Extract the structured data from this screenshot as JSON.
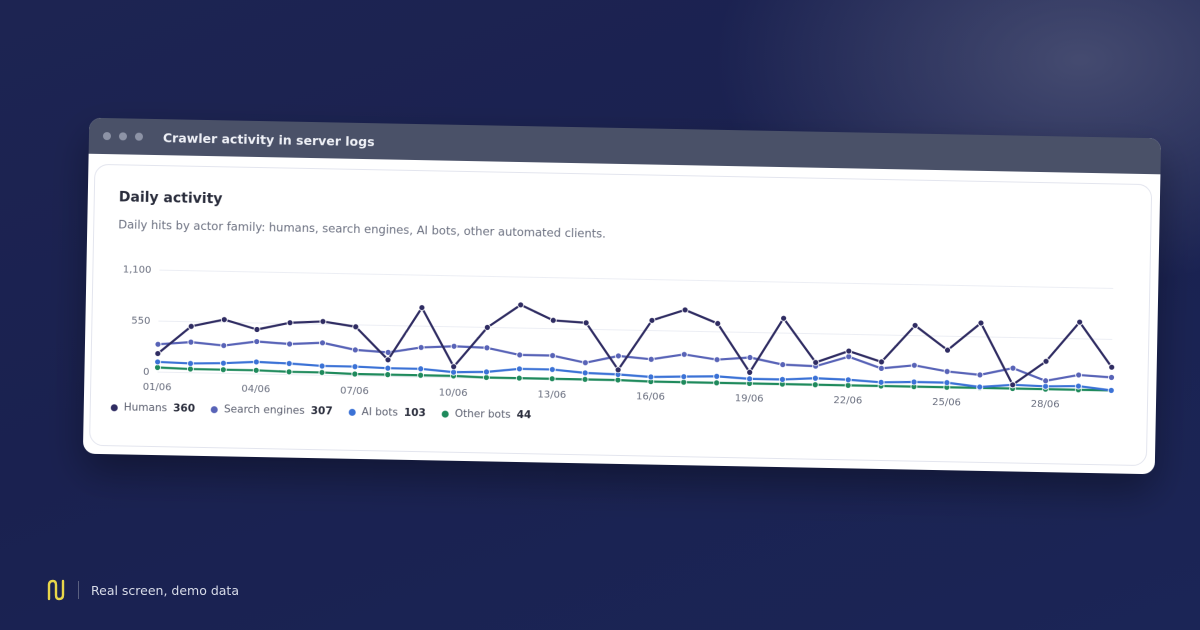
{
  "window": {
    "title": "Crawler activity in server logs"
  },
  "card": {
    "title": "Daily activity",
    "subtitle": "Daily hits by actor family: humans, search engines, AI bots, other automated clients."
  },
  "legend": [
    {
      "name": "Humans",
      "value": "360",
      "color": "#2f2c62"
    },
    {
      "name": "Search engines",
      "value": "307",
      "color": "#5863b7"
    },
    {
      "name": "AI bots",
      "value": "103",
      "color": "#3b72d6"
    },
    {
      "name": "Other bots",
      "value": "44",
      "color": "#1f8a5c"
    }
  ],
  "footer": {
    "text": "Real screen, demo data",
    "logo_icon": "brand-logo-icon"
  },
  "chart_data": {
    "type": "line",
    "title": "Daily activity",
    "ylim": [
      0,
      1100
    ],
    "yticks": [
      "0",
      "550",
      "1,100"
    ],
    "x": [
      "01/06",
      "02/06",
      "03/06",
      "04/06",
      "05/06",
      "06/06",
      "07/06",
      "08/06",
      "09/06",
      "10/06",
      "11/06",
      "12/06",
      "13/06",
      "14/06",
      "15/06",
      "16/06",
      "17/06",
      "18/06",
      "19/06",
      "20/06",
      "21/06",
      "22/06",
      "23/06",
      "24/06",
      "25/06",
      "26/06",
      "27/06",
      "28/06",
      "29/06",
      "30/06"
    ],
    "xticks": [
      "01/06",
      "04/06",
      "07/06",
      "10/06",
      "13/06",
      "16/06",
      "19/06",
      "22/06",
      "25/06",
      "28/06"
    ],
    "grid": true,
    "legend_position": "bottom-left",
    "series": [
      {
        "name": "Humans",
        "color": "#2f2c62",
        "values": [
          200,
          500,
          580,
          480,
          560,
          580,
          530,
          180,
          750,
          120,
          550,
          800,
          640,
          620,
          120,
          660,
          780,
          640,
          120,
          710,
          240,
          370,
          260,
          660,
          400,
          700,
          40,
          300,
          730,
          250
        ]
      },
      {
        "name": "Search engines",
        "color": "#5863b7",
        "values": [
          300,
          330,
          300,
          350,
          330,
          350,
          280,
          260,
          320,
          340,
          330,
          260,
          260,
          190,
          270,
          240,
          300,
          250,
          280,
          210,
          200,
          310,
          190,
          230,
          170,
          140,
          220,
          90,
          160,
          140
        ]
      },
      {
        "name": "AI bots",
        "color": "#3b72d6",
        "values": [
          110,
          100,
          110,
          130,
          120,
          100,
          100,
          90,
          90,
          60,
          70,
          110,
          110,
          80,
          70,
          50,
          60,
          70,
          50,
          50,
          70,
          60,
          40,
          50,
          50,
          10,
          40,
          30,
          40,
          0
        ]
      },
      {
        "name": "Other bots",
        "color": "#1f8a5c",
        "values": [
          50,
          40,
          40,
          40,
          30,
          30,
          20,
          20,
          20,
          20,
          10,
          10,
          10,
          10,
          10,
          0,
          0,
          0,
          0,
          0,
          0,
          0,
          0,
          0,
          0,
          0,
          0,
          0,
          0,
          0
        ]
      }
    ]
  }
}
